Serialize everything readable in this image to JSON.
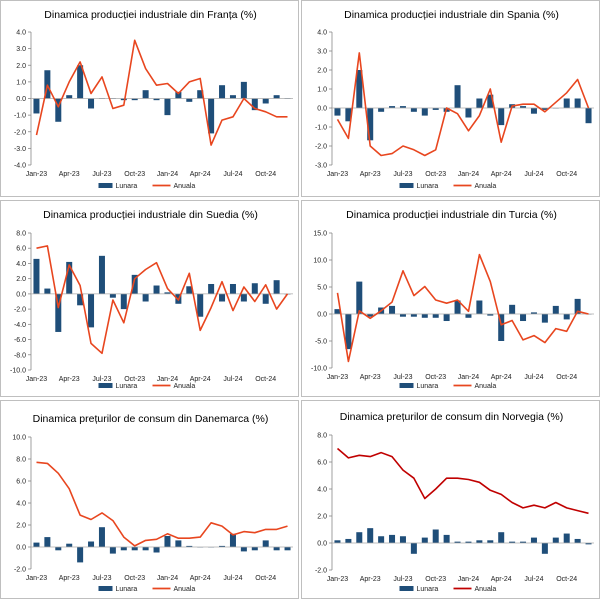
{
  "colors": {
    "bar": "#1f4e79",
    "line_red": "#e8461f",
    "line_dark_red": "#c00000",
    "axis": "#888888",
    "zero": "#aaaaaa"
  },
  "chart_data": [
    {
      "type": "bar+line",
      "title": "Dinamica producției industriale din Franța (%)",
      "months": [
        "Jan-23",
        "Feb-23",
        "Mar-23",
        "Apr-23",
        "May-23",
        "Jun-23",
        "Jul-23",
        "Aug-23",
        "Sep-23",
        "Oct-23",
        "Nov-23",
        "Dec-23",
        "Jan-24",
        "Feb-24",
        "Mar-24",
        "Apr-24",
        "May-24",
        "Jun-24",
        "Jul-24",
        "Aug-24",
        "Sep-24",
        "Oct-24",
        "Nov-24",
        "Dec-24"
      ],
      "tick_labels": [
        "Jan-23",
        "Apr-23",
        "Jul-23",
        "Oct-23",
        "Jan-24",
        "Apr-24",
        "Jul-24",
        "Oct-24"
      ],
      "tick_indices": [
        0,
        3,
        6,
        9,
        12,
        15,
        18,
        21
      ],
      "yticks": [
        -4.0,
        -3.0,
        -2.0,
        -1.0,
        0.0,
        1.0,
        2.0,
        3.0,
        4.0
      ],
      "ytick_labels": [
        "-4.0",
        "-3.0",
        "-2.0",
        "-1.0",
        "0.0",
        "1.0",
        "2.0",
        "3.0",
        "4.0"
      ],
      "ylim": [
        -4,
        4
      ],
      "series": [
        {
          "name": "Lunara",
          "kind": "bar",
          "values": [
            -0.9,
            1.7,
            -1.4,
            0.2,
            2.0,
            -0.6,
            0.0,
            0.0,
            -0.1,
            -0.1,
            0.5,
            -0.1,
            -1.0,
            0.4,
            -0.2,
            0.5,
            -2.1,
            0.8,
            0.2,
            1.0,
            -0.7,
            -0.3,
            0.2,
            0.0
          ]
        },
        {
          "name": "Anuala",
          "kind": "line",
          "values": [
            -2.2,
            0.8,
            -0.5,
            1.0,
            2.2,
            0.3,
            1.3,
            -0.6,
            -0.4,
            3.5,
            1.8,
            0.8,
            0.9,
            0.3,
            1.0,
            1.2,
            -2.8,
            -1.3,
            -1.1,
            0.0,
            -0.6,
            -0.8,
            -1.1,
            -1.1
          ]
        }
      ],
      "legend": [
        "Lunara",
        "Anuala"
      ]
    },
    {
      "type": "bar+line",
      "title": "Dinamica producției industriale din Spania (%)",
      "months": [
        "Jan-23",
        "Feb-23",
        "Mar-23",
        "Apr-23",
        "May-23",
        "Jun-23",
        "Jul-23",
        "Aug-23",
        "Sep-23",
        "Oct-23",
        "Nov-23",
        "Dec-23",
        "Jan-24",
        "Feb-24",
        "Mar-24",
        "Apr-24",
        "May-24",
        "Jun-24",
        "Jul-24",
        "Aug-24",
        "Sep-24",
        "Oct-24",
        "Nov-24",
        "Dec-24"
      ],
      "tick_labels": [
        "Jan-23",
        "Apr-23",
        "Jul-23",
        "Oct-23",
        "Jan-24",
        "Apr-24",
        "Jul-24",
        "Oct-24"
      ],
      "tick_indices": [
        0,
        3,
        6,
        9,
        12,
        15,
        18,
        21
      ],
      "yticks": [
        -3.0,
        -2.0,
        -1.0,
        0.0,
        1.0,
        2.0,
        3.0,
        4.0
      ],
      "ytick_labels": [
        "-3.0",
        "-2.0",
        "-1.0",
        "0.0",
        "1.0",
        "2.0",
        "3.0",
        "4.0"
      ],
      "ylim": [
        -3,
        4
      ],
      "series": [
        {
          "name": "Lunara",
          "kind": "bar",
          "values": [
            -0.4,
            -0.7,
            2.0,
            -1.7,
            -0.2,
            0.1,
            0.1,
            -0.2,
            -0.4,
            -0.1,
            -0.2,
            1.2,
            -0.5,
            0.5,
            0.7,
            -0.9,
            0.2,
            0.1,
            -0.3,
            -0.1,
            0.0,
            0.5,
            0.5,
            -0.8
          ]
        },
        {
          "name": "Anuala",
          "kind": "line",
          "values": [
            -0.6,
            -1.6,
            2.9,
            -2.0,
            -2.5,
            -2.4,
            -2.0,
            -2.2,
            -2.5,
            -2.2,
            0.0,
            -0.3,
            -1.2,
            -0.4,
            1.0,
            -1.8,
            0.1,
            0.2,
            0.2,
            -0.2,
            0.3,
            0.8,
            1.5,
            0.0
          ]
        }
      ],
      "legend": [
        "Lunara",
        "Anuala"
      ]
    },
    {
      "type": "bar+line",
      "title": "Dinamica producției industriale din Suedia (%)",
      "months": [
        "Jan-23",
        "Feb-23",
        "Mar-23",
        "Apr-23",
        "May-23",
        "Jun-23",
        "Jul-23",
        "Aug-23",
        "Sep-23",
        "Oct-23",
        "Nov-23",
        "Dec-23",
        "Jan-24",
        "Feb-24",
        "Mar-24",
        "Apr-24",
        "May-24",
        "Jun-24",
        "Jul-24",
        "Aug-24",
        "Sep-24",
        "Oct-24",
        "Nov-24",
        "Dec-24"
      ],
      "tick_labels": [
        "Jan-23",
        "Apr-23",
        "Jul-23",
        "Oct-23",
        "Jan-24",
        "Apr-24",
        "Jul-24",
        "Oct-24"
      ],
      "tick_indices": [
        0,
        3,
        6,
        9,
        12,
        15,
        18,
        21
      ],
      "yticks": [
        -10.0,
        -8.0,
        -6.0,
        -4.0,
        -2.0,
        0.0,
        2.0,
        4.0,
        6.0,
        8.0
      ],
      "ytick_labels": [
        "-10.0",
        "-8.0",
        "-6.0",
        "-4.0",
        "-2.0",
        "0.0",
        "2.0",
        "4.0",
        "6.0",
        "8.0"
      ],
      "ylim": [
        -10,
        8
      ],
      "series": [
        {
          "name": "Lunara",
          "kind": "bar",
          "values": [
            4.6,
            0.7,
            -5.0,
            4.2,
            -1.5,
            -4.4,
            5.0,
            -0.5,
            -2.0,
            2.5,
            -1.0,
            1.1,
            0.2,
            -1.3,
            1.0,
            -3.0,
            1.3,
            -1.0,
            1.3,
            -1.0,
            1.4,
            -1.3,
            1.8,
            0.0
          ]
        },
        {
          "name": "Anuala",
          "kind": "line",
          "values": [
            6.0,
            6.3,
            -1.8,
            3.8,
            1.1,
            -6.5,
            -7.8,
            -0.8,
            -3.8,
            2.0,
            3.2,
            4.1,
            0.7,
            -0.8,
            2.7,
            -4.8,
            -1.8,
            1.6,
            -2.2,
            0.9,
            -1.0,
            1.2,
            -2.0,
            0.0
          ]
        }
      ],
      "legend": [
        "Lunara",
        "Anuala"
      ]
    },
    {
      "type": "bar+line",
      "title": "Dinamica producției industriale din Turcia (%)",
      "months": [
        "Jan-23",
        "Feb-23",
        "Mar-23",
        "Apr-23",
        "May-23",
        "Jun-23",
        "Jul-23",
        "Aug-23",
        "Sep-23",
        "Oct-23",
        "Nov-23",
        "Dec-23",
        "Jan-24",
        "Feb-24",
        "Mar-24",
        "Apr-24",
        "May-24",
        "Jun-24",
        "Jul-24",
        "Aug-24",
        "Sep-24",
        "Oct-24",
        "Nov-24",
        "Dec-24"
      ],
      "tick_labels": [
        "Jan-23",
        "Apr-23",
        "Jul-23",
        "Oct-23",
        "Jan-24",
        "Apr-24",
        "Jul-24",
        "Oct-24"
      ],
      "tick_indices": [
        0,
        3,
        6,
        9,
        12,
        15,
        18,
        21
      ],
      "yticks": [
        -10.0,
        -5.0,
        0.0,
        5.0,
        10.0,
        15.0
      ],
      "ytick_labels": [
        "-10.0",
        "-5.0",
        "0.0",
        "5.0",
        "10.0",
        "15.0"
      ],
      "ylim": [
        -10,
        15
      ],
      "series": [
        {
          "name": "Lunara",
          "kind": "bar",
          "values": [
            0.9,
            -6.5,
            6.0,
            -0.5,
            1.2,
            1.5,
            -0.5,
            -0.5,
            -0.7,
            -0.7,
            -1.3,
            2.5,
            -0.7,
            2.5,
            -0.3,
            -5.0,
            1.7,
            -1.3,
            0.3,
            -1.6,
            1.5,
            -1.0,
            2.8,
            0.0
          ]
        },
        {
          "name": "Anuala",
          "kind": "line",
          "values": [
            3.9,
            -8.8,
            0.6,
            -0.8,
            0.6,
            2.2,
            8.0,
            3.4,
            5.1,
            2.6,
            2.0,
            2.6,
            0.5,
            11.0,
            6.0,
            -2.0,
            -1.2,
            -4.8,
            -4.0,
            -5.3,
            -2.7,
            -3.2,
            0.5,
            0.0
          ]
        }
      ],
      "legend": [
        "Lunara",
        "Anuala"
      ]
    },
    {
      "type": "bar+line",
      "title": "Dinamica prețurilor de consum din Danemarca (%)",
      "months": [
        "Jan-23",
        "Feb-23",
        "Mar-23",
        "Apr-23",
        "May-23",
        "Jun-23",
        "Jul-23",
        "Aug-23",
        "Sep-23",
        "Oct-23",
        "Nov-23",
        "Dec-23",
        "Jan-24",
        "Feb-24",
        "Mar-24",
        "Apr-24",
        "May-24",
        "Jun-24",
        "Jul-24",
        "Aug-24",
        "Sep-24",
        "Oct-24",
        "Nov-24",
        "Dec-24"
      ],
      "tick_labels": [
        "Jan-23",
        "Apr-23",
        "Jul-23",
        "Oct-23",
        "Jan-24",
        "Apr-24",
        "Jul-24",
        "Oct-24"
      ],
      "tick_indices": [
        0,
        3,
        6,
        9,
        12,
        15,
        18,
        21
      ],
      "yticks": [
        -2.0,
        0.0,
        2.0,
        4.0,
        6.0,
        8.0,
        10.0
      ],
      "ytick_labels": [
        "-2.0",
        "0.0",
        "2.0",
        "4.0",
        "6.0",
        "8.0",
        "10.0"
      ],
      "ylim": [
        -2,
        10
      ],
      "series": [
        {
          "name": "Lunara",
          "kind": "bar",
          "values": [
            0.4,
            0.9,
            -0.3,
            0.3,
            -1.4,
            0.5,
            1.8,
            -0.6,
            -0.3,
            -0.3,
            -0.3,
            -0.5,
            1.0,
            0.6,
            0.1,
            0.0,
            0.0,
            0.1,
            1.2,
            -0.4,
            -0.3,
            0.6,
            -0.3,
            -0.3
          ]
        },
        {
          "name": "Anuala",
          "kind": "line",
          "values": [
            7.7,
            7.6,
            6.7,
            5.3,
            2.9,
            2.5,
            3.1,
            2.4,
            0.9,
            0.1,
            0.6,
            0.7,
            1.2,
            0.8,
            0.8,
            0.9,
            2.2,
            1.9,
            1.1,
            1.4,
            1.3,
            1.6,
            1.6,
            1.9
          ]
        }
      ],
      "legend": [
        "Lunara",
        "Anuala"
      ]
    },
    {
      "type": "bar+line",
      "title": "Dinamica prețurilor de consum din Norvegia (%)",
      "months": [
        "Jan-23",
        "Feb-23",
        "Mar-23",
        "Apr-23",
        "May-23",
        "Jun-23",
        "Jul-23",
        "Aug-23",
        "Sep-23",
        "Oct-23",
        "Nov-23",
        "Dec-23",
        "Jan-24",
        "Feb-24",
        "Mar-24",
        "Apr-24",
        "May-24",
        "Jun-24",
        "Jul-24",
        "Aug-24",
        "Sep-24",
        "Oct-24",
        "Nov-24",
        "Dec-24"
      ],
      "tick_labels": [
        "Jan-23",
        "Apr-23",
        "Jul-23",
        "Oct-23",
        "Jan-24",
        "Apr-24",
        "Jul-24",
        "Oct-24"
      ],
      "tick_indices": [
        0,
        3,
        6,
        9,
        12,
        15,
        18,
        21
      ],
      "yticks": [
        -2.0,
        0.0,
        2.0,
        4.0,
        6.0,
        8.0
      ],
      "ytick_labels": [
        "-2.0",
        "0.0",
        "2.0",
        "4.0",
        "6.0",
        "8.0"
      ],
      "ylim": [
        -2,
        8
      ],
      "series": [
        {
          "name": "Lunara",
          "kind": "bar",
          "values": [
            0.2,
            0.3,
            0.8,
            1.1,
            0.5,
            0.6,
            0.5,
            -0.8,
            0.4,
            1.0,
            0.6,
            0.1,
            0.1,
            0.2,
            0.2,
            0.8,
            0.1,
            0.1,
            0.4,
            -0.8,
            0.4,
            0.7,
            0.3,
            -0.1
          ]
        },
        {
          "name": "Anuala",
          "kind": "line",
          "values": [
            7.0,
            6.3,
            6.5,
            6.4,
            6.7,
            6.4,
            5.4,
            4.8,
            3.3,
            4.0,
            4.8,
            4.8,
            4.7,
            4.5,
            3.9,
            3.6,
            3.0,
            2.6,
            2.8,
            2.6,
            3.0,
            2.6,
            2.4,
            2.2
          ]
        }
      ],
      "legend": [
        "Lunara",
        "Anuala"
      ]
    }
  ]
}
